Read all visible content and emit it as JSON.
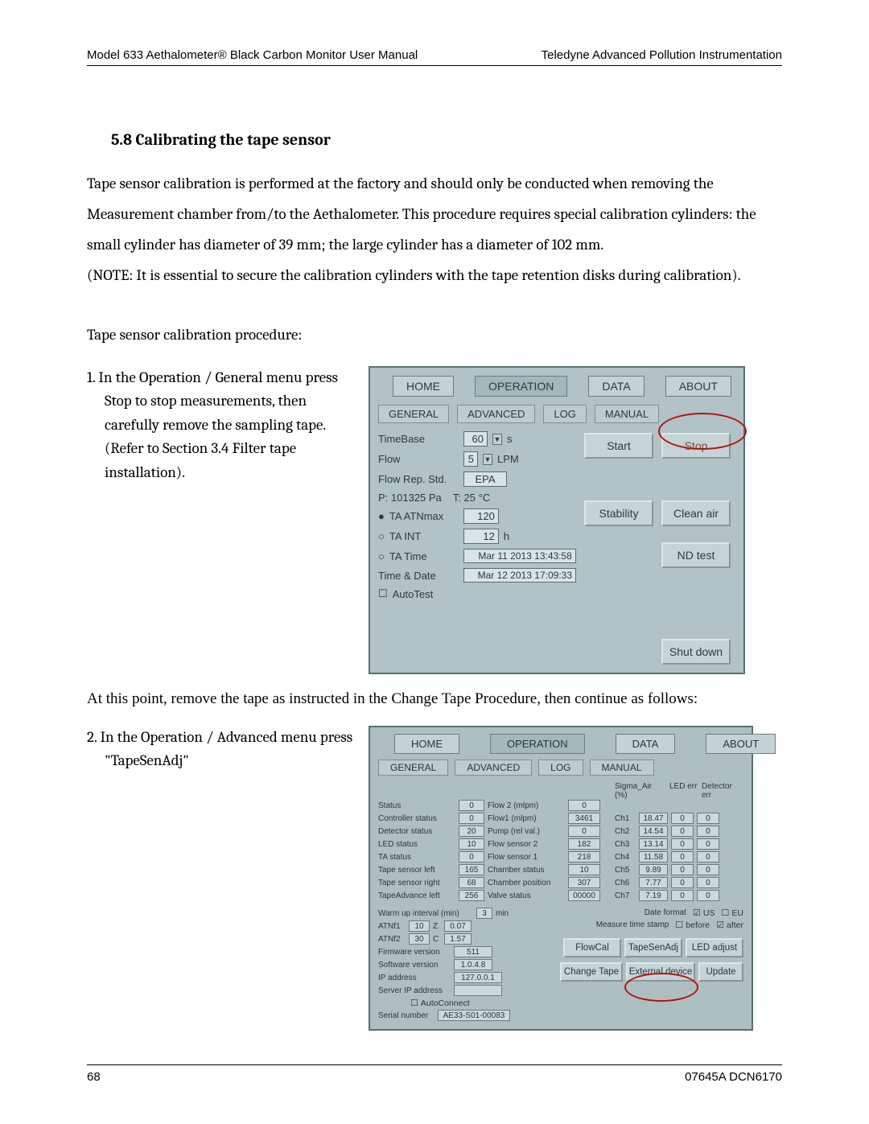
{
  "header": {
    "left": "Model 633 Aethalometer® Black Carbon Monitor User Manual",
    "right": "Teledyne Advanced Pollution Instrumentation"
  },
  "section": {
    "title": "5.8 Calibrating the tape sensor",
    "para1": "Tape sensor calibration is performed at the factory and should only be conducted when removing the Measurement chamber from/to the Aethalometer. This procedure requires special calibration cylinders: the small cylinder has diameter of 39 mm; the large cylinder has a diameter of 102 mm.",
    "note": "(NOTE: It is essential to secure the calibration cylinders with the tape retention disks during calibration).",
    "intro": "Tape sensor calibration procedure:",
    "step1": "1. In the Operation / General menu  press Stop to stop measurements, then carefully remove the sampling tape. (Refer to Section  3.4 Filter tape installation).",
    "between": "At this point, remove the tape as instructed in the Change Tape Procedure, then continue as follows:",
    "step2": "2. In the Operation / Advanced menu press \"TapeSenAdj\""
  },
  "ui1": {
    "top_tabs": [
      "HOME",
      "OPERATION",
      "DATA",
      "ABOUT"
    ],
    "sub_tabs": [
      "GENERAL",
      "ADVANCED",
      "LOG",
      "MANUAL"
    ],
    "timebase_label": "TimeBase",
    "timebase_val": "60",
    "timebase_unit": "s",
    "flow_label": "Flow",
    "flow_val": "5",
    "flow_unit": "LPM",
    "flowrep_label": "Flow Rep. Std.",
    "flowrep_val": "EPA",
    "pt_line_p": "P: 101325 Pa",
    "pt_line_t": "T: 25 °C",
    "ta_atnmax_label": "TA ATNmax",
    "ta_atnmax_val": "120",
    "ta_int_label": "TA INT",
    "ta_int_val": "12",
    "ta_int_unit": "h",
    "ta_time_label": "TA Time",
    "ta_time_val": "Mar 11 2013 13:43:58",
    "timedate_label": "Time & Date",
    "timedate_val": "Mar 12 2013 17:09:33",
    "autotest_label": "AutoTest",
    "btn_start": "Start",
    "btn_stop": "Stop",
    "btn_stability": "Stability",
    "btn_cleanair": "Clean air",
    "btn_ndtest": "ND test",
    "btn_shutdown": "Shut down"
  },
  "ui2": {
    "top_tabs": [
      "HOME",
      "OPERATION",
      "DATA",
      "ABOUT"
    ],
    "sub_tabs": [
      "GENERAL",
      "ADVANCED",
      "LOG",
      "MANUAL"
    ],
    "left_labels": [
      "Status",
      "Controller status",
      "Detector status",
      "LED status",
      "TA status",
      "Tape sensor left",
      "Tape sensor right",
      "TapeAdvance left"
    ],
    "left_vals": [
      "0",
      "0",
      "20",
      "10",
      "0",
      "165",
      "68",
      "256"
    ],
    "mid_labels": [
      "Flow 2 (mlpm)",
      "Flow1 (mlpm)",
      "Pump (rel val.)",
      "Flow sensor 2",
      "Flow sensor 1",
      "Chamber status",
      "Chamber position",
      "Valve status"
    ],
    "mid_vals": [
      "0",
      "3461",
      "0",
      "182",
      "218",
      "10",
      "307",
      "00000"
    ],
    "ch_labels": [
      "Ch1",
      "Ch2",
      "Ch3",
      "Ch4",
      "Ch5",
      "Ch6",
      "Ch7"
    ],
    "sigma_header": "Sigma_Air (%)",
    "sigma_vals": [
      "18.47",
      "14.54",
      "13.14",
      "11.58",
      "9.89",
      "7.77",
      "7.19"
    ],
    "led_header": "LED err",
    "led_vals": [
      "0",
      "0",
      "0",
      "0",
      "0",
      "0",
      "0"
    ],
    "det_header": "Detector err",
    "det_vals": [
      "0",
      "0",
      "0",
      "0",
      "0",
      "0",
      "0"
    ],
    "warmup_label": "Warm up interval (min)",
    "warmup_val": "3",
    "warmup_unit": "min",
    "atn1_label": "ATNf1",
    "atn1_val": "10",
    "atn1_z": "Z",
    "atn1_zval": "0.07",
    "atn2_label": "ATNf2",
    "atn2_val": "30",
    "atn2_c": "C",
    "atn2_cval": "1.57",
    "fw_label": "Firmware version",
    "fw_val": "511",
    "sw_label": "Software version",
    "sw_val": "1.0.4.8",
    "ip_label": "IP address",
    "ip_val": "127.0.0.1",
    "srv_label": "Server IP address",
    "srv_val": "",
    "autoconn_label": "AutoConnect",
    "serial_label": "Serial number",
    "serial_val": "AE33-S01-00083",
    "dateformat_label": "Date format",
    "mts_label": "Measure time stamp",
    "chk_us": "US",
    "chk_eu": "EU",
    "chk_before": "before",
    "chk_after": "after",
    "btn_flowcal": "FlowCal",
    "btn_tapesenadj": "TapeSenAdj",
    "btn_ledadjust": "LED adjust",
    "btn_changetape": "Change Tape",
    "btn_extdevice": "External device",
    "btn_update": "Update"
  },
  "footer": {
    "page": "68",
    "doc": "07645A DCN6170"
  }
}
